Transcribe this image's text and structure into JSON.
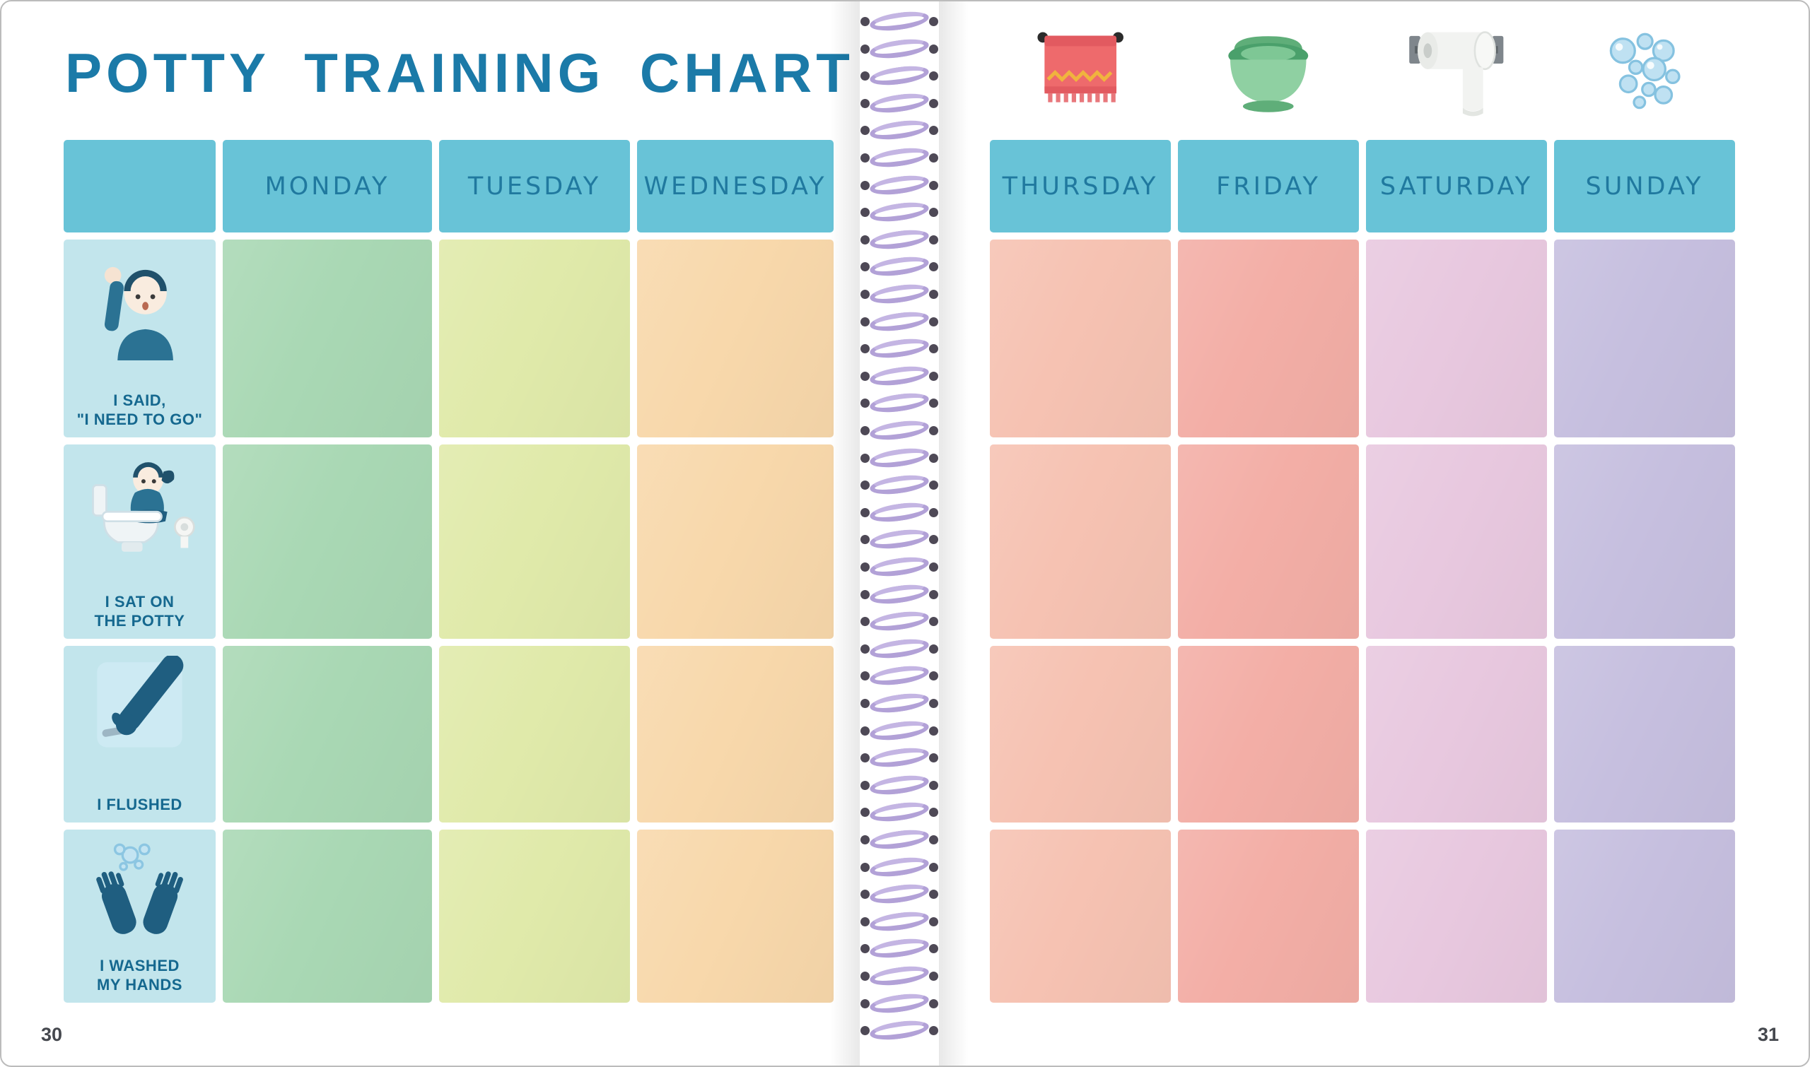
{
  "book": {
    "title": "POTTY TRAINING CHART",
    "left_page_number": "30",
    "right_page_number": "31"
  },
  "theme": {
    "header_bg": "#68c3d7",
    "day_label_color": "#20799f",
    "title_color": "#1b7aa8",
    "icon_cell_bg": "#c2e5ec",
    "row_label_color": "#15688f",
    "spiral_color": "#b2a1d7"
  },
  "left_chart": {
    "days": [
      {
        "label": "MONDAY",
        "color": "#a9d8b4"
      },
      {
        "label": "TUESDAY",
        "color": "#e0eaaa"
      },
      {
        "label": "WEDNESDAY",
        "color": "#f8d8ab"
      }
    ],
    "rows": [
      {
        "icon": "child-waving-icon",
        "label_line1": "I SAID,",
        "label_line2": "\"I NEED TO GO\""
      },
      {
        "icon": "child-on-potty-icon",
        "label_line1": "I SAT ON",
        "label_line2": "THE POTTY"
      },
      {
        "icon": "flushing-arm-icon",
        "label_line1": "I FLUSHED",
        "label_line2": ""
      },
      {
        "icon": "washing-hands-icon",
        "label_line1": "I WASHED",
        "label_line2": "MY HANDS"
      }
    ]
  },
  "right_chart": {
    "top_icons": [
      {
        "icon": "towel-icon"
      },
      {
        "icon": "potty-icon"
      },
      {
        "icon": "toilet-paper-icon"
      },
      {
        "icon": "soap-bubbles-icon"
      }
    ],
    "days": [
      {
        "label": "THURSDAY",
        "color": "#f6c2b2"
      },
      {
        "label": "FRIDAY",
        "color": "#f3aea6"
      },
      {
        "label": "SATURDAY",
        "color": "#e8c8df"
      },
      {
        "label": "SUNDAY",
        "color": "#c6bfdf"
      }
    ]
  }
}
